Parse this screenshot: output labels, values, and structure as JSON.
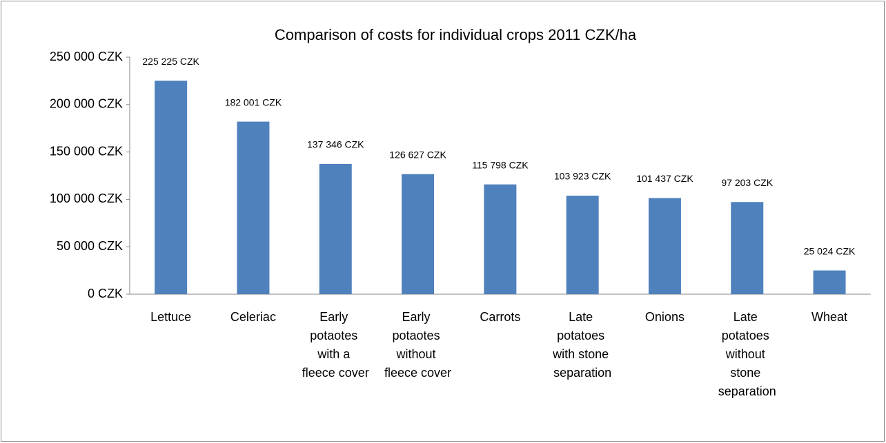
{
  "chart_data": {
    "type": "bar",
    "title": "Comparison of costs for individual crops  2011 CZK/ha",
    "categories": [
      "Lettuce",
      "Celeriac",
      "Early potaotes with a fleece cover",
      "Early potaotes without fleece cover",
      "Carrots",
      "Late potatoes with stone separation",
      "Onions",
      "Late potatoes without stone separation",
      "Wheat"
    ],
    "values": [
      225225,
      182001,
      137346,
      126627,
      115798,
      103923,
      101437,
      97203,
      25024
    ],
    "value_labels": [
      "225 225 CZK",
      "182 001 CZK",
      "137 346 CZK",
      "126 627 CZK",
      "115 798 CZK",
      "103 923 CZK",
      "101 437 CZK",
      "97 203 CZK",
      "25 024 CZK"
    ],
    "color": "#4f81bd",
    "ylim": [
      0,
      250000
    ],
    "yticks": [
      {
        "value": 0,
        "label": "0 CZK"
      },
      {
        "value": 50000,
        "label": "50 000 CZK"
      },
      {
        "value": 100000,
        "label": "100 000 CZK"
      },
      {
        "value": 150000,
        "label": "150 000 CZK"
      },
      {
        "value": 200000,
        "label": "200 000 CZK"
      },
      {
        "value": 250000,
        "label": "250 000 CZK"
      }
    ],
    "grid": false
  }
}
